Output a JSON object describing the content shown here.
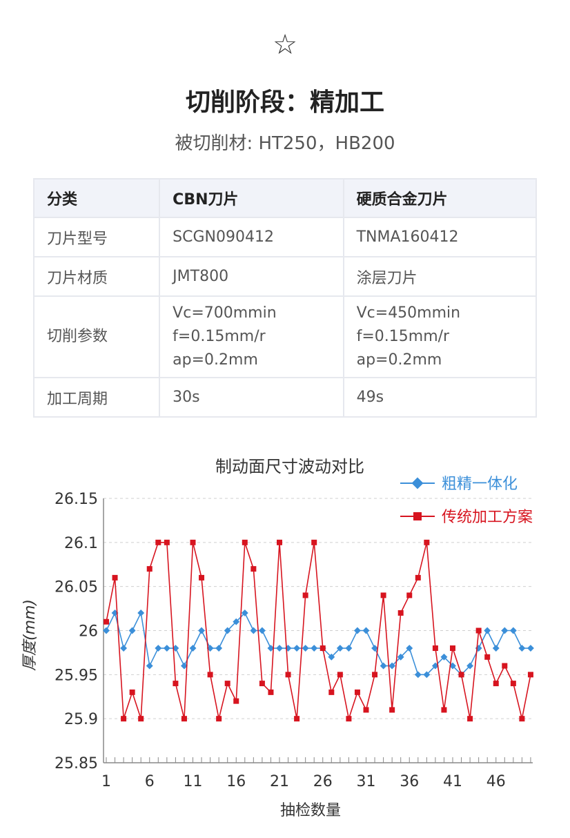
{
  "header": {
    "star_icon": "☆",
    "title": "切削阶段：精加工",
    "subtitle": "被切削材: HT250，HB200"
  },
  "table": {
    "headers": [
      "分类",
      "CBN刀片",
      "硬质合金刀片"
    ],
    "rows": [
      [
        "刀片型号",
        "SCGN090412",
        "TNMA160412"
      ],
      [
        "刀片材质",
        "JMT800",
        "涂层刀片"
      ],
      [
        "切削参数",
        "Vc=700mmin\nf=0.15mm/r\nap=0.2mm",
        "Vc=450mmin\nf=0.15mm/r\nap=0.2mm"
      ],
      [
        "加工周期",
        "30s",
        "49s"
      ]
    ]
  },
  "chart_data": {
    "type": "line",
    "title": "制动面尺寸波动对比",
    "xlabel": "抽检数量",
    "ylabel": "厚度(mm)",
    "ylim": [
      25.85,
      26.15
    ],
    "yticks": [
      "26.15",
      "26.1",
      "26.05",
      "26",
      "25.95",
      "25.9",
      "25.85"
    ],
    "ytick_values": [
      26.15,
      26.1,
      26.05,
      26.0,
      25.95,
      25.9,
      25.85
    ],
    "xticks": [
      1,
      6,
      11,
      16,
      21,
      26,
      31,
      36,
      41,
      46
    ],
    "x_count": 50,
    "grid": "horizontal dashed",
    "legend_position": "top-right",
    "series": [
      {
        "name": "粗精一体化",
        "color": "#3b8fd9",
        "marker": "diamond",
        "values": [
          26.0,
          26.02,
          25.98,
          26.0,
          26.02,
          25.96,
          25.98,
          25.98,
          25.98,
          25.96,
          25.98,
          26.0,
          25.98,
          25.98,
          26.0,
          26.01,
          26.02,
          26.0,
          26.0,
          25.98,
          25.98,
          25.98,
          25.98,
          25.98,
          25.98,
          25.98,
          25.97,
          25.98,
          25.98,
          26.0,
          26.0,
          25.98,
          25.96,
          25.96,
          25.97,
          25.98,
          25.95,
          25.95,
          25.96,
          25.97,
          25.96,
          25.95,
          25.96,
          25.98,
          26.0,
          25.98,
          26.0,
          26.0,
          25.98,
          25.98
        ]
      },
      {
        "name": "传统加工方案",
        "color": "#d7141f",
        "marker": "square",
        "values": [
          26.01,
          26.06,
          25.9,
          25.93,
          25.9,
          26.07,
          26.1,
          26.1,
          25.94,
          25.9,
          26.1,
          26.06,
          25.95,
          25.9,
          25.94,
          25.92,
          26.1,
          26.07,
          25.94,
          25.93,
          26.1,
          25.95,
          25.9,
          26.04,
          26.1,
          25.98,
          25.93,
          25.95,
          25.9,
          25.93,
          25.91,
          25.95,
          26.04,
          25.91,
          26.02,
          26.04,
          26.06,
          26.1,
          25.98,
          25.91,
          25.98,
          25.95,
          25.9,
          26.0,
          25.97,
          25.94,
          25.96,
          25.94,
          25.9,
          25.95
        ]
      }
    ]
  }
}
